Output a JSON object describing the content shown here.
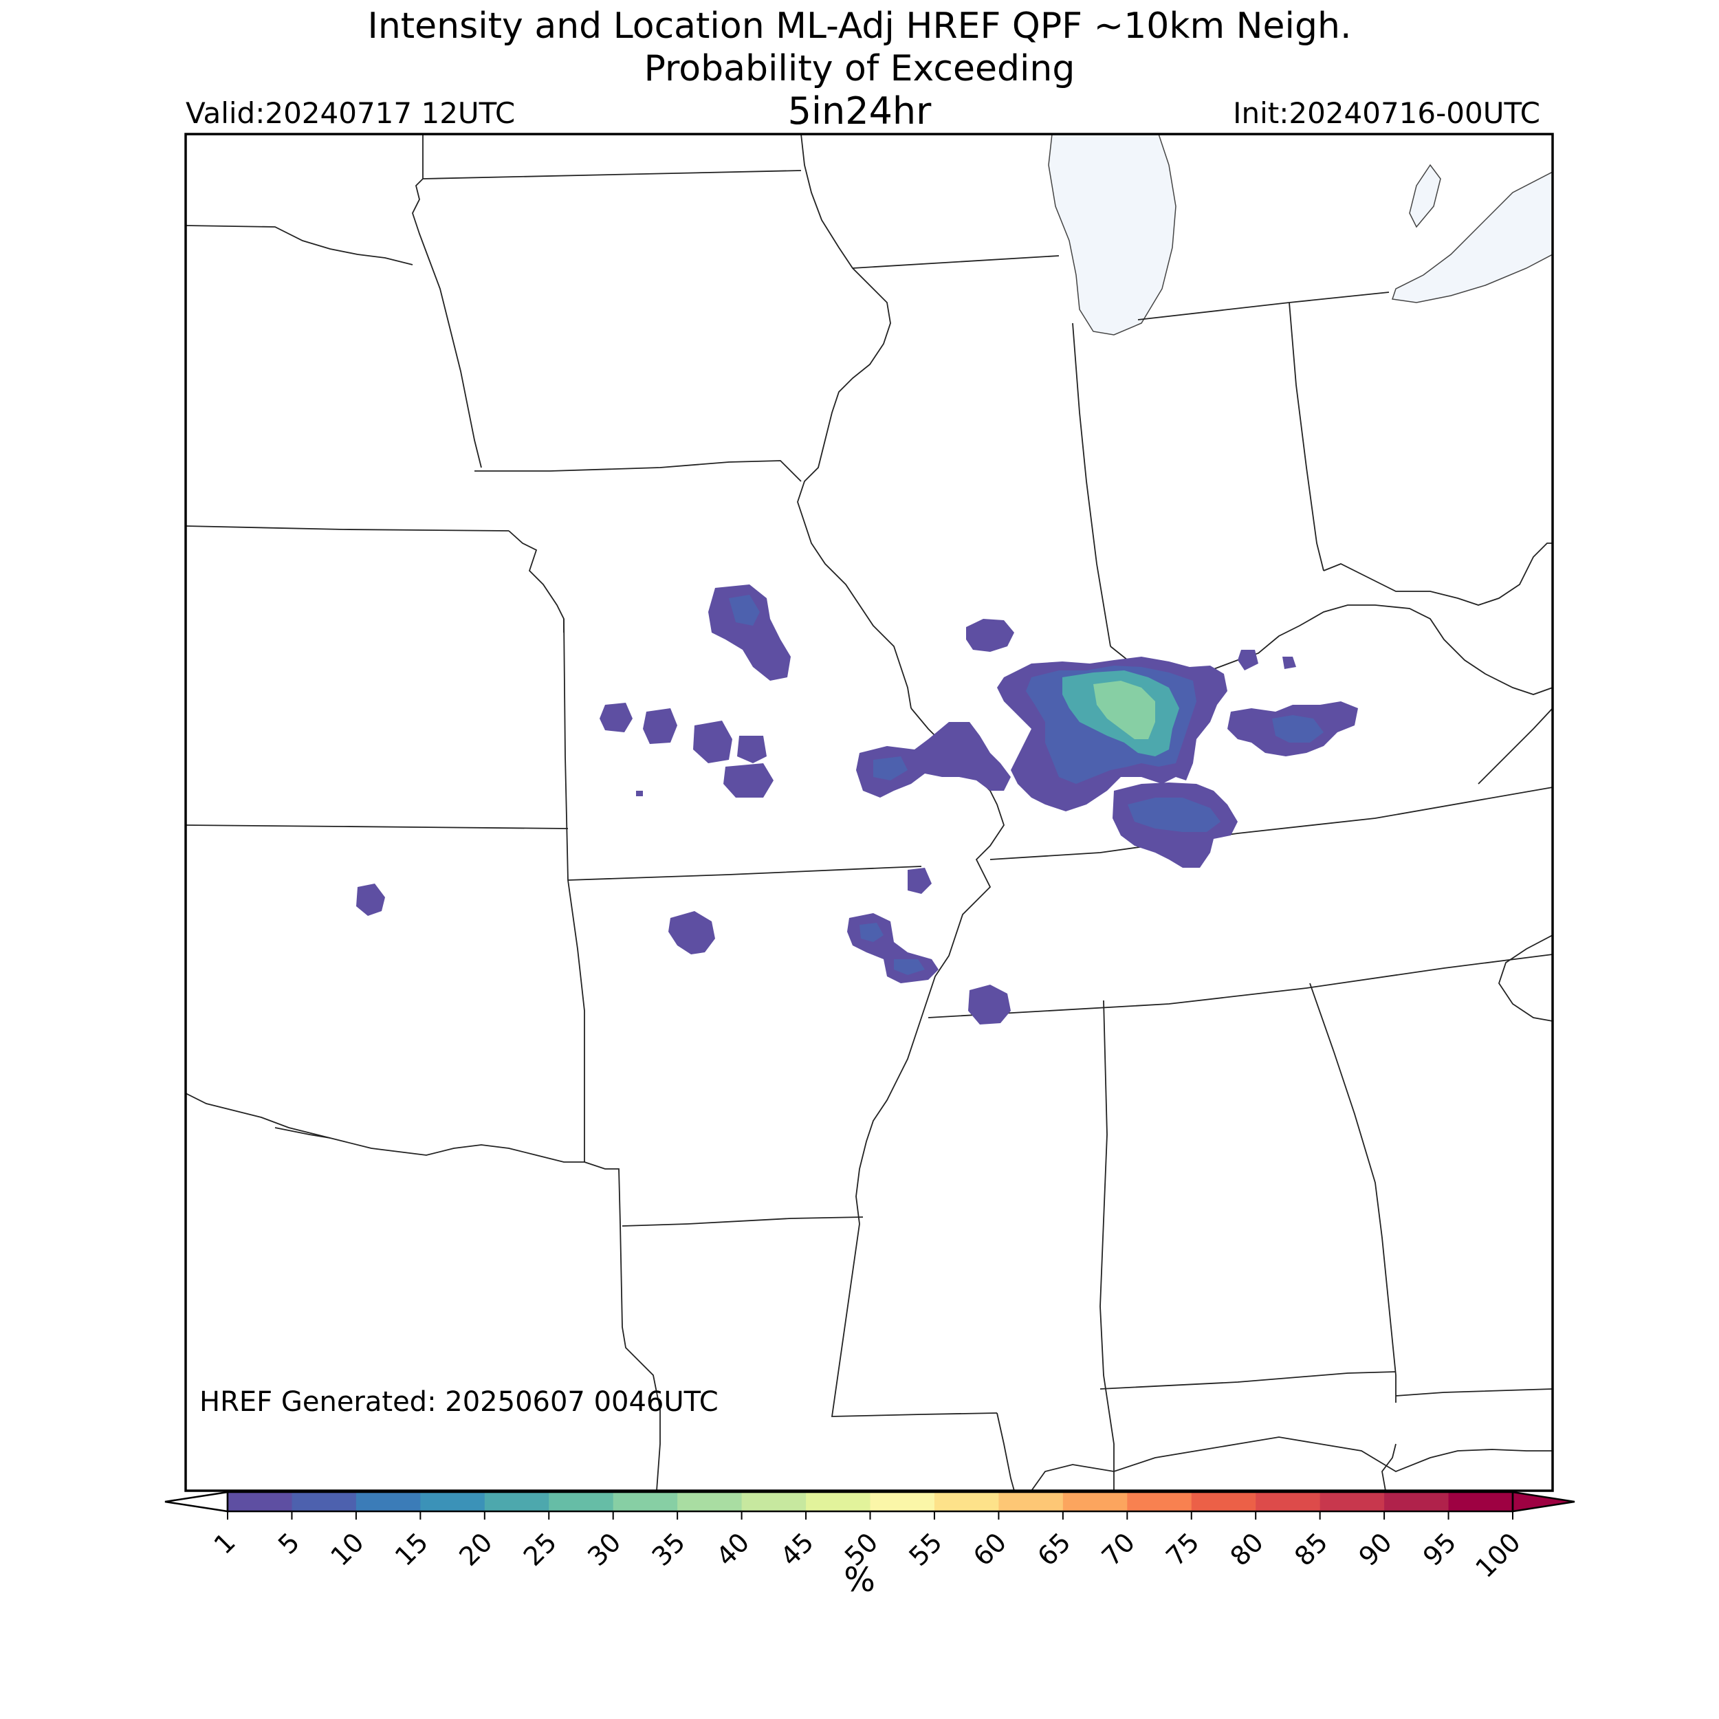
{
  "header": {
    "title_line1": "Intensity and Location ML-Adj HREF QPF ~10km Neigh.",
    "title_line2": "Probability of Exceeding",
    "title_line3": "5in24hr",
    "valid": "Valid:20240717 12UTC",
    "init": "Init:20240716-00UTC"
  },
  "footer": {
    "generated": "HREF Generated: 20250607 0046UTC"
  },
  "colorbar": {
    "unit": "%",
    "ticks": [
      "1",
      "5",
      "10",
      "15",
      "20",
      "25",
      "30",
      "35",
      "40",
      "45",
      "50",
      "55",
      "60",
      "65",
      "70",
      "75",
      "80",
      "85",
      "90",
      "95",
      "100"
    ],
    "colors": [
      "#5e4fa2",
      "#4d61ae",
      "#3b7cb8",
      "#3b92b8",
      "#4da8ad",
      "#66bda6",
      "#87cfa4",
      "#a9dda2",
      "#c7e89f",
      "#e2f39b",
      "#fbf6a8",
      "#fde28a",
      "#fdc775",
      "#fca55e",
      "#f88150",
      "#ec6047",
      "#dd4b4a",
      "#c8374d",
      "#b0224b",
      "#9e0142"
    ],
    "under_color": "#ffffff",
    "over_color": "#9e0142"
  },
  "map": {
    "water_color": "#f2f6fb",
    "border_color": "#222222",
    "precip_colors": {
      "p1": "#5e4fa2",
      "p5": "#4d61ae",
      "p20": "#4da8ad",
      "p30": "#87cfa4"
    }
  }
}
